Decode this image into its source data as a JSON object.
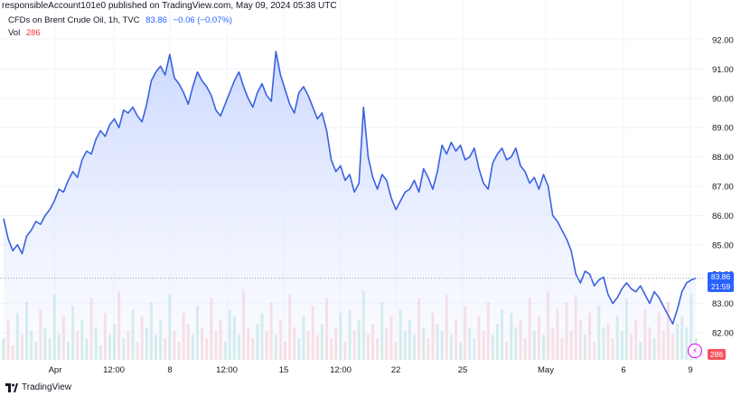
{
  "header": {
    "text": "responsibleAccount101e0 published on TradingView.com, May 09, 2024 05:38 UTC"
  },
  "legend": {
    "symbol": "CFDs on Brent Crude Oil, 1h, TVC",
    "last": "83.86",
    "change": "−0.06 (−0.07%)",
    "vol_label": "Vol",
    "vol_value": "286"
  },
  "badges": {
    "price": "83.86",
    "countdown": "21:59",
    "volume": "286",
    "bolt_icon": "lightning-icon"
  },
  "footer": {
    "brand": "TradingView",
    "logo_icon": "tradingview-logo-icon"
  },
  "colors": {
    "line": "#3a62e0",
    "area_top": "#c9d6ff",
    "vol_up": "#a3d8d0",
    "vol_down": "#f5b9bd",
    "price_badge": "#2962ff",
    "vol_badge": "#f7525f"
  },
  "chart_data": {
    "type": "area",
    "title": "CFDs on Brent Crude Oil, 1h, TVC",
    "ylim": [
      81.6,
      92.4
    ],
    "yticks": [
      "92.00",
      "91.00",
      "90.00",
      "89.00",
      "88.00",
      "87.00",
      "86.00",
      "85.00",
      "84.00",
      "83.00",
      "82.00"
    ],
    "xticks": [
      "Apr",
      "12:00",
      "8",
      "12:00",
      "15",
      "12:00",
      "22",
      "25",
      "May",
      "6",
      "9"
    ],
    "last_price": 83.86,
    "series": [
      {
        "values": [
          85.9,
          85.2,
          84.8,
          85.0,
          84.7,
          85.3,
          85.5,
          85.8,
          85.7,
          86.0,
          86.2,
          86.5,
          86.9,
          86.8,
          87.2,
          87.5,
          87.3,
          87.9,
          88.2,
          88.1,
          88.6,
          88.9,
          88.7,
          89.1,
          89.3,
          89.0,
          89.6,
          89.5,
          89.7,
          89.4,
          89.2,
          89.8,
          90.6,
          90.9,
          91.1,
          90.8,
          91.5,
          90.7,
          90.5,
          90.2,
          89.8,
          90.4,
          90.9,
          90.6,
          90.4,
          90.1,
          89.6,
          89.4,
          89.8,
          90.2,
          90.6,
          90.9,
          90.4,
          90.0,
          89.7,
          90.2,
          90.5,
          90.1,
          89.9,
          91.6,
          90.8,
          90.3,
          89.8,
          89.5,
          90.2,
          90.4,
          90.1,
          89.7,
          89.3,
          89.5,
          88.9,
          87.9,
          87.5,
          87.7,
          87.2,
          87.4,
          86.8,
          87.1,
          89.7,
          88.0,
          87.3,
          86.9,
          87.4,
          87.2,
          86.6,
          86.2,
          86.5,
          86.8,
          86.9,
          87.2,
          86.8,
          87.6,
          87.3,
          86.9,
          87.5,
          88.4,
          88.1,
          88.5,
          88.2,
          88.4,
          87.9,
          88.0,
          88.3,
          87.6,
          87.1,
          86.9,
          87.8,
          88.1,
          88.3,
          87.9,
          88.0,
          88.3,
          87.7,
          87.5,
          87.1,
          87.3,
          86.9,
          87.4,
          87.0,
          86.0,
          85.8,
          85.5,
          85.2,
          84.8,
          84.0,
          83.7,
          84.1,
          84.0,
          83.6,
          83.8,
          83.9,
          83.3,
          83.0,
          83.2,
          83.5,
          83.7,
          83.5,
          83.4,
          83.6,
          83.3,
          83.0,
          83.4,
          83.2,
          82.9,
          82.6,
          82.3,
          82.8,
          83.4,
          83.7,
          83.8,
          83.86
        ],
        "volume": [
          0.3,
          0.55,
          0.2,
          0.65,
          0.35,
          0.8,
          0.4,
          0.25,
          0.7,
          0.45,
          0.3,
          0.9,
          0.35,
          0.6,
          0.25,
          0.75,
          0.4,
          0.55,
          0.3,
          0.85,
          0.45,
          0.2,
          0.65,
          0.35,
          0.5,
          0.95,
          0.3,
          0.4,
          0.7,
          0.25,
          0.6,
          0.45,
          0.8,
          0.35,
          0.55,
          0.3,
          0.9,
          0.4,
          0.25,
          0.65,
          0.5,
          0.35,
          0.75,
          0.45,
          0.3,
          0.85,
          0.4,
          0.55,
          0.25,
          0.7,
          0.6,
          0.35,
          0.95,
          0.45,
          0.3,
          0.5,
          0.65,
          0.4,
          0.8,
          0.35,
          0.55,
          0.25,
          0.9,
          0.45,
          0.3,
          0.6,
          0.4,
          0.75,
          0.35,
          0.5,
          0.85,
          0.3,
          0.45,
          0.65,
          0.25,
          0.7,
          0.4,
          0.55,
          0.95,
          0.35,
          0.5,
          0.3,
          0.8,
          0.45,
          0.6,
          0.25,
          0.7,
          0.4,
          0.55,
          0.35,
          0.85,
          0.45,
          0.3,
          0.65,
          0.5,
          0.4,
          0.9,
          0.35,
          0.55,
          0.25,
          0.75,
          0.45,
          0.3,
          0.6,
          0.4,
          0.8,
          0.35,
          0.5,
          0.7,
          0.25,
          0.65,
          0.45,
          0.55,
          0.3,
          0.85,
          0.4,
          0.6,
          0.35,
          0.95,
          0.45,
          0.7,
          0.3,
          0.8,
          0.4,
          0.9,
          0.55,
          0.35,
          0.65,
          0.25,
          0.75,
          0.45,
          0.5,
          0.3,
          0.6,
          0.4,
          0.85,
          0.35,
          0.55,
          0.25,
          0.7,
          0.45,
          0.3,
          0.65,
          0.4,
          0.8,
          0.35,
          0.5,
          0.6,
          0.45,
          0.9,
          0.3
        ]
      }
    ]
  }
}
